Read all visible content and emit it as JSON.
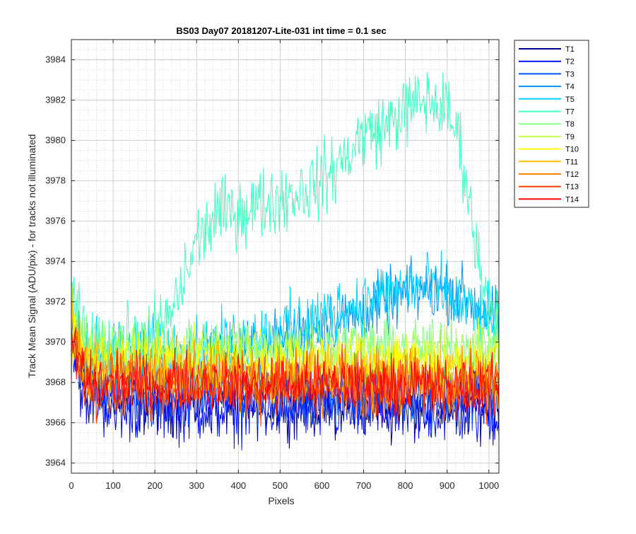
{
  "chart_data": {
    "type": "line",
    "title": "BS03 Day07 20181207-Lite-031 int time = 0.1 sec",
    "xlabel": "Pixels",
    "ylabel": "Track Mean Signal (ADU/pix) - for tracks not illuminated",
    "xlim": [
      0,
      1024
    ],
    "ylim": [
      3963.5,
      3985
    ],
    "xticks": [
      0,
      100,
      200,
      300,
      400,
      500,
      600,
      700,
      800,
      900,
      1000
    ],
    "yticks": [
      3964,
      3966,
      3968,
      3970,
      3972,
      3974,
      3976,
      3978,
      3980,
      3982,
      3984
    ],
    "grid": true,
    "minor_grid": true,
    "legend_position": "outside-top-right",
    "series": [
      {
        "name": "T1",
        "color": "#00008f",
        "profile": [
          [
            0,
            3970
          ],
          [
            30,
            3967.5
          ],
          [
            100,
            3967
          ],
          [
            1024,
            3966.8
          ]
        ],
        "noise": 1.4
      },
      {
        "name": "T2",
        "color": "#0010ff",
        "profile": [
          [
            0,
            3970
          ],
          [
            30,
            3967.3
          ],
          [
            100,
            3966.8
          ],
          [
            1024,
            3966.5
          ]
        ],
        "noise": 1.5
      },
      {
        "name": "T3",
        "color": "#0050ff",
        "profile": [
          [
            0,
            3970.5
          ],
          [
            30,
            3968
          ],
          [
            100,
            3967.5
          ],
          [
            1024,
            3967.4
          ]
        ],
        "noise": 1.3
      },
      {
        "name": "T4",
        "color": "#0090ff",
        "profile": [
          [
            0,
            3971
          ],
          [
            30,
            3969
          ],
          [
            300,
            3969
          ],
          [
            500,
            3970
          ],
          [
            700,
            3971.5
          ],
          [
            820,
            3972.5
          ],
          [
            900,
            3972.6
          ],
          [
            960,
            3972
          ],
          [
            1024,
            3971
          ]
        ],
        "noise": 1.4
      },
      {
        "name": "T5",
        "color": "#00d0ff",
        "profile": [
          [
            0,
            3971.5
          ],
          [
            30,
            3969.5
          ],
          [
            300,
            3969.5
          ],
          [
            500,
            3970.5
          ],
          [
            700,
            3972
          ],
          [
            820,
            3972.8
          ],
          [
            900,
            3972.5
          ],
          [
            960,
            3971.5
          ],
          [
            1024,
            3970.5
          ]
        ],
        "noise": 1.5
      },
      {
        "name": "T7",
        "color": "#40ffbf",
        "profile": [
          [
            0,
            3971.8
          ],
          [
            50,
            3969.5
          ],
          [
            150,
            3970
          ],
          [
            230,
            3971
          ],
          [
            260,
            3972.5
          ],
          [
            300,
            3975
          ],
          [
            350,
            3976.3
          ],
          [
            400,
            3976.5
          ],
          [
            450,
            3976.8
          ],
          [
            500,
            3977.2
          ],
          [
            550,
            3977.5
          ],
          [
            600,
            3978
          ],
          [
            650,
            3979
          ],
          [
            700,
            3980.3
          ],
          [
            750,
            3980.7
          ],
          [
            800,
            3981.5
          ],
          [
            850,
            3982
          ],
          [
            900,
            3981.5
          ],
          [
            930,
            3980
          ],
          [
            950,
            3977.5
          ],
          [
            970,
            3974.5
          ],
          [
            1000,
            3972
          ],
          [
            1024,
            3971
          ]
        ],
        "noise": 1.6
      },
      {
        "name": "T8",
        "color": "#80ff80",
        "profile": [
          [
            0,
            3971
          ],
          [
            40,
            3969.8
          ],
          [
            1024,
            3969.8
          ]
        ],
        "noise": 1.3
      },
      {
        "name": "T9",
        "color": "#bfff40",
        "profile": [
          [
            0,
            3971
          ],
          [
            40,
            3969.5
          ],
          [
            1024,
            3969.3
          ]
        ],
        "noise": 1.3
      },
      {
        "name": "T10",
        "color": "#ffff00",
        "profile": [
          [
            0,
            3970.6
          ],
          [
            40,
            3969
          ],
          [
            1024,
            3968.9
          ]
        ],
        "noise": 1.3
      },
      {
        "name": "T11",
        "color": "#ffbf00",
        "profile": [
          [
            0,
            3970.3
          ],
          [
            40,
            3968.5
          ],
          [
            1024,
            3968.4
          ]
        ],
        "noise": 1.4
      },
      {
        "name": "T12",
        "color": "#ff8000",
        "profile": [
          [
            0,
            3970
          ],
          [
            40,
            3968.2
          ],
          [
            1024,
            3968
          ]
        ],
        "noise": 1.5
      },
      {
        "name": "T13",
        "color": "#ff4000",
        "profile": [
          [
            0,
            3970
          ],
          [
            40,
            3968
          ],
          [
            1024,
            3967.8
          ]
        ],
        "noise": 1.4
      },
      {
        "name": "T14",
        "color": "#ff0000",
        "profile": [
          [
            0,
            3970
          ],
          [
            40,
            3968
          ],
          [
            1024,
            3967.8
          ]
        ],
        "noise": 1.3
      }
    ]
  }
}
